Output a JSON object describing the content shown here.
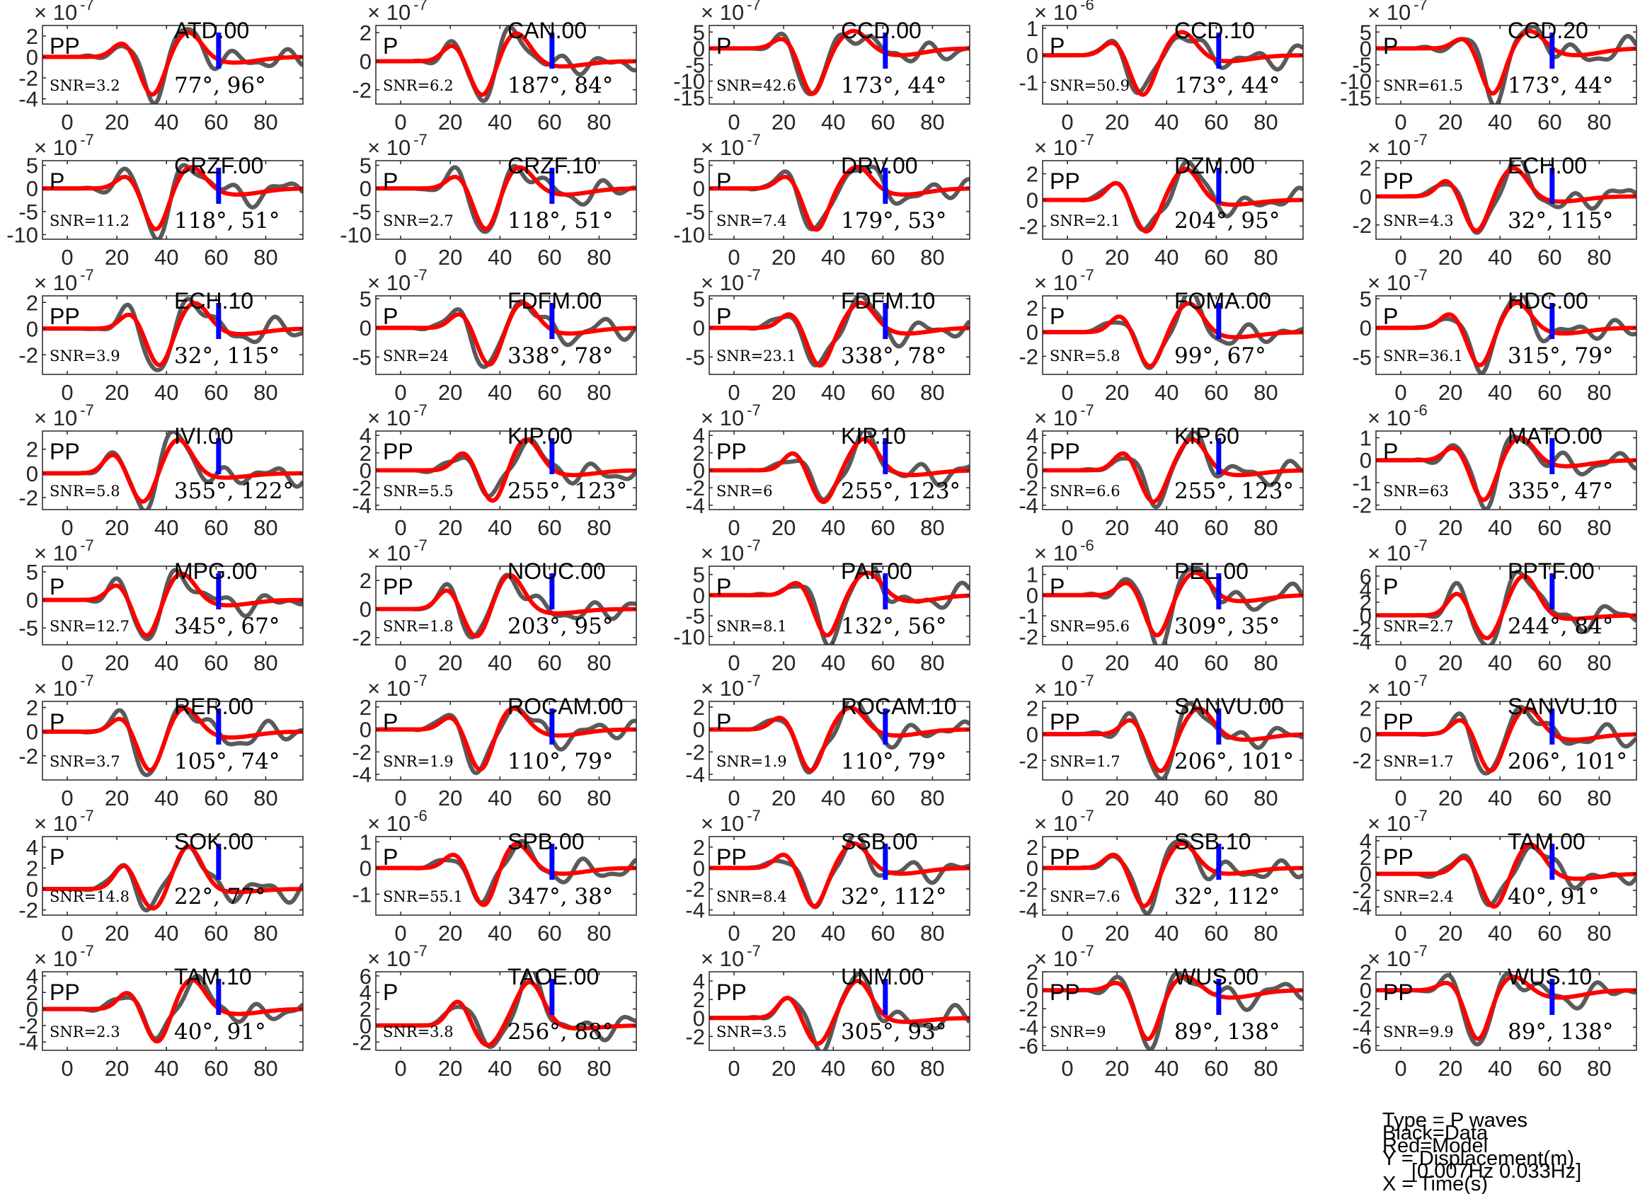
{
  "chart_data": {
    "type": "line",
    "layout": {
      "rows": 8,
      "cols": 5
    },
    "xlim": [
      -10,
      95
    ],
    "xticks": [
      0,
      20,
      40,
      60,
      80
    ],
    "series_colors": {
      "data": "#5a5a5a",
      "model": "#ff0000",
      "marker": "#0000ff"
    },
    "legend_text": [
      "Type = P waves",
      "Black=Data",
      "Red=Model",
      "Y = Displacement(m)",
      "[0.007Hz 0.033Hz]",
      "X = Time(s)"
    ],
    "panels": [
      {
        "station": "ATD.00",
        "phase": "PP",
        "snr": "SNR=3.2",
        "angles": "77°, 96°",
        "exp": "-7",
        "ylim": [
          -4.5,
          3
        ],
        "yticks": [
          -4,
          -2,
          0,
          2
        ],
        "marker_t": 61,
        "seed": 1
      },
      {
        "station": "CAN.00",
        "phase": "P",
        "snr": "SNR=6.2",
        "angles": "187°, 84°",
        "exp": "-7",
        "ylim": [
          -3,
          2.5
        ],
        "yticks": [
          -2,
          0,
          2
        ],
        "marker_t": 61,
        "seed": 2
      },
      {
        "station": "CCD.00",
        "phase": "P",
        "snr": "SNR=42.6",
        "angles": "173°, 44°",
        "exp": "-7",
        "ylim": [
          -17,
          7
        ],
        "yticks": [
          -15,
          -10,
          -5,
          0,
          5
        ],
        "marker_t": 61,
        "seed": 3
      },
      {
        "station": "CCD.10",
        "phase": "P",
        "snr": "SNR=50.9",
        "angles": "173°, 44°",
        "exp": "-6",
        "ylim": [
          -1.8,
          1.1
        ],
        "yticks": [
          -1,
          0,
          1
        ],
        "marker_t": 61,
        "seed": 4
      },
      {
        "station": "CCD.20",
        "phase": "P",
        "snr": "SNR=61.5",
        "angles": "173°, 44°",
        "exp": "-7",
        "ylim": [
          -17,
          7
        ],
        "yticks": [
          -15,
          -10,
          -5,
          0,
          5
        ],
        "marker_t": 61,
        "seed": 5
      },
      {
        "station": "CRZF.00",
        "phase": "P",
        "snr": "SNR=11.2",
        "angles": "118°, 51°",
        "exp": "-7",
        "ylim": [
          -11,
          6
        ],
        "yticks": [
          -10,
          -5,
          0,
          5
        ],
        "marker_t": 61,
        "seed": 6
      },
      {
        "station": "CRZF.10",
        "phase": "P",
        "snr": "SNR=2.7",
        "angles": "118°, 51°",
        "exp": "-7",
        "ylim": [
          -11,
          6
        ],
        "yticks": [
          -10,
          -5,
          0,
          5
        ],
        "marker_t": 61,
        "seed": 7
      },
      {
        "station": "DRV.00",
        "phase": "P",
        "snr": "SNR=7.4",
        "angles": "179°, 53°",
        "exp": "-7",
        "ylim": [
          -11,
          6
        ],
        "yticks": [
          -10,
          -5,
          0,
          5
        ],
        "marker_t": 61,
        "seed": 8
      },
      {
        "station": "DZM.00",
        "phase": "PP",
        "snr": "SNR=2.1",
        "angles": "204°, 95°",
        "exp": "-7",
        "ylim": [
          -3,
          3
        ],
        "yticks": [
          -2,
          0,
          2
        ],
        "marker_t": 61,
        "seed": 9
      },
      {
        "station": "ECH.00",
        "phase": "PP",
        "snr": "SNR=4.3",
        "angles": "32°, 115°",
        "exp": "-7",
        "ylim": [
          -3,
          2.5
        ],
        "yticks": [
          -2,
          0,
          2
        ],
        "marker_t": 61,
        "seed": 10
      },
      {
        "station": "ECH.10",
        "phase": "PP",
        "snr": "SNR=3.9",
        "angles": "32°, 115°",
        "exp": "-7",
        "ylim": [
          -3.5,
          2.5
        ],
        "yticks": [
          -2,
          0,
          2
        ],
        "marker_t": 61,
        "seed": 11
      },
      {
        "station": "FDFM.00",
        "phase": "P",
        "snr": "SNR=24",
        "angles": "338°, 78°",
        "exp": "-7",
        "ylim": [
          -8,
          5.5
        ],
        "yticks": [
          -5,
          0,
          5
        ],
        "marker_t": 61,
        "seed": 12
      },
      {
        "station": "FDFM.10",
        "phase": "P",
        "snr": "SNR=23.1",
        "angles": "338°, 78°",
        "exp": "-7",
        "ylim": [
          -8,
          5.5
        ],
        "yticks": [
          -5,
          0,
          5
        ],
        "marker_t": 61,
        "seed": 13
      },
      {
        "station": "FOMA.00",
        "phase": "P",
        "snr": "SNR=5.8",
        "angles": "99°, 67°",
        "exp": "-7",
        "ylim": [
          -3.5,
          3
        ],
        "yticks": [
          -2,
          0,
          2
        ],
        "marker_t": 61,
        "seed": 14
      },
      {
        "station": "HDC.00",
        "phase": "P",
        "snr": "SNR=36.1",
        "angles": "315°, 79°",
        "exp": "-7",
        "ylim": [
          -8,
          5.5
        ],
        "yticks": [
          -5,
          0,
          5
        ],
        "marker_t": 61,
        "seed": 15
      },
      {
        "station": "IVI.00",
        "phase": "PP",
        "snr": "SNR=5.8",
        "angles": "355°, 122°",
        "exp": "-7",
        "ylim": [
          -3,
          3.5
        ],
        "yticks": [
          -2,
          0,
          2
        ],
        "marker_t": 61,
        "seed": 16
      },
      {
        "station": "KIP.00",
        "phase": "PP",
        "snr": "SNR=5.5",
        "angles": "255°, 123°",
        "exp": "-7",
        "ylim": [
          -4.5,
          4.5
        ],
        "yticks": [
          -4,
          -2,
          0,
          2,
          4
        ],
        "marker_t": 61,
        "seed": 17
      },
      {
        "station": "KIP.10",
        "phase": "PP",
        "snr": "SNR=6",
        "angles": "255°, 123°",
        "exp": "-7",
        "ylim": [
          -4.5,
          4.5
        ],
        "yticks": [
          -4,
          -2,
          0,
          2,
          4
        ],
        "marker_t": 61,
        "seed": 18
      },
      {
        "station": "KIP.60",
        "phase": "PP",
        "snr": "SNR=6.6",
        "angles": "255°, 123°",
        "exp": "-7",
        "ylim": [
          -4.5,
          4.5
        ],
        "yticks": [
          -4,
          -2,
          0,
          2,
          4
        ],
        "marker_t": 61,
        "seed": 19
      },
      {
        "station": "MATO.00",
        "phase": "P",
        "snr": "SNR=63",
        "angles": "335°, 47°",
        "exp": "-6",
        "ylim": [
          -2.2,
          1.3
        ],
        "yticks": [
          -2,
          -1,
          0,
          1
        ],
        "marker_t": 61,
        "seed": 20
      },
      {
        "station": "MPG.00",
        "phase": "P",
        "snr": "SNR=12.7",
        "angles": "345°, 67°",
        "exp": "-7",
        "ylim": [
          -8,
          6
        ],
        "yticks": [
          -5,
          0,
          5
        ],
        "marker_t": 61,
        "seed": 21
      },
      {
        "station": "NOUC.00",
        "phase": "PP",
        "snr": "SNR=1.8",
        "angles": "203°, 95°",
        "exp": "-7",
        "ylim": [
          -2.5,
          3
        ],
        "yticks": [
          -2,
          0,
          2
        ],
        "marker_t": 61,
        "seed": 22
      },
      {
        "station": "PAF.00",
        "phase": "P",
        "snr": "SNR=8.1",
        "angles": "132°, 56°",
        "exp": "-7",
        "ylim": [
          -12,
          7
        ],
        "yticks": [
          -10,
          -5,
          0,
          5
        ],
        "marker_t": 61,
        "seed": 23
      },
      {
        "station": "PEL.00",
        "phase": "P",
        "snr": "SNR=95.6",
        "angles": "309°, 35°",
        "exp": "-6",
        "ylim": [
          -2.4,
          1.4
        ],
        "yticks": [
          -2,
          -1,
          0,
          1
        ],
        "marker_t": 61,
        "seed": 24
      },
      {
        "station": "PPTF.00",
        "phase": "P",
        "snr": "SNR=2.7",
        "angles": "244°, 84°",
        "exp": "-7",
        "ylim": [
          -4.5,
          7.5
        ],
        "yticks": [
          -4,
          -2,
          0,
          2,
          4,
          6
        ],
        "marker_t": 61,
        "seed": 25
      },
      {
        "station": "RER.00",
        "phase": "P",
        "snr": "SNR=3.7",
        "angles": "105°, 74°",
        "exp": "-7",
        "ylim": [
          -4,
          2.5
        ],
        "yticks": [
          -2,
          0,
          2
        ],
        "marker_t": 61,
        "seed": 26
      },
      {
        "station": "ROCAM.00",
        "phase": "P",
        "snr": "SNR=1.9",
        "angles": "110°, 79°",
        "exp": "-7",
        "ylim": [
          -4.5,
          2.5
        ],
        "yticks": [
          -4,
          -2,
          0,
          2
        ],
        "marker_t": 61,
        "seed": 27
      },
      {
        "station": "ROCAM.10",
        "phase": "P",
        "snr": "SNR=1.9",
        "angles": "110°, 79°",
        "exp": "-7",
        "ylim": [
          -4.5,
          2.5
        ],
        "yticks": [
          -4,
          -2,
          0,
          2
        ],
        "marker_t": 61,
        "seed": 28
      },
      {
        "station": "SANVU.00",
        "phase": "PP",
        "snr": "SNR=1.7",
        "angles": "206°, 101°",
        "exp": "-7",
        "ylim": [
          -3.5,
          2.5
        ],
        "yticks": [
          -2,
          0,
          2
        ],
        "marker_t": 61,
        "seed": 29
      },
      {
        "station": "SANVU.10",
        "phase": "PP",
        "snr": "SNR=1.7",
        "angles": "206°, 101°",
        "exp": "-7",
        "ylim": [
          -3.5,
          2.5
        ],
        "yticks": [
          -2,
          0,
          2
        ],
        "marker_t": 61,
        "seed": 30
      },
      {
        "station": "SOK.00",
        "phase": "P",
        "snr": "SNR=14.8",
        "angles": "22°, 77°",
        "exp": "-7",
        "ylim": [
          -2.5,
          5
        ],
        "yticks": [
          -2,
          0,
          2,
          4
        ],
        "marker_t": 61,
        "seed": 31
      },
      {
        "station": "SPB.00",
        "phase": "P",
        "snr": "SNR=55.1",
        "angles": "347°, 38°",
        "exp": "-6",
        "ylim": [
          -1.8,
          1.2
        ],
        "yticks": [
          -1,
          0,
          1
        ],
        "marker_t": 61,
        "seed": 32
      },
      {
        "station": "SSB.00",
        "phase": "PP",
        "snr": "SNR=8.4",
        "angles": "32°, 112°",
        "exp": "-7",
        "ylim": [
          -4.5,
          3
        ],
        "yticks": [
          -4,
          -2,
          0,
          2
        ],
        "marker_t": 61,
        "seed": 33
      },
      {
        "station": "SSB.10",
        "phase": "PP",
        "snr": "SNR=7.6",
        "angles": "32°, 112°",
        "exp": "-7",
        "ylim": [
          -4.5,
          3
        ],
        "yticks": [
          -4,
          -2,
          0,
          2
        ],
        "marker_t": 61,
        "seed": 34
      },
      {
        "station": "TAM.00",
        "phase": "PP",
        "snr": "SNR=2.4",
        "angles": "40°, 91°",
        "exp": "-7",
        "ylim": [
          -5,
          4.5
        ],
        "yticks": [
          -4,
          -2,
          0,
          2,
          4
        ],
        "marker_t": 61,
        "seed": 35
      },
      {
        "station": "TAM.10",
        "phase": "PP",
        "snr": "SNR=2.3",
        "angles": "40°, 91°",
        "exp": "-7",
        "ylim": [
          -5,
          4.5
        ],
        "yticks": [
          -4,
          -2,
          0,
          2,
          4
        ],
        "marker_t": 61,
        "seed": 36
      },
      {
        "station": "TAOE.00",
        "phase": "P",
        "snr": "SNR=3.8",
        "angles": "256°, 88°",
        "exp": "-7",
        "ylim": [
          -3,
          6.5
        ],
        "yticks": [
          -2,
          0,
          2,
          4,
          6
        ],
        "marker_t": 61,
        "seed": 37
      },
      {
        "station": "UNM.00",
        "phase": "PP",
        "snr": "SNR=3.5",
        "angles": "305°, 93°",
        "exp": "-7",
        "ylim": [
          -3.5,
          5
        ],
        "yticks": [
          -2,
          0,
          2,
          4
        ],
        "marker_t": 61,
        "seed": 38
      },
      {
        "station": "WUS.00",
        "phase": "PP",
        "snr": "SNR=9",
        "angles": "89°, 138°",
        "exp": "-7",
        "ylim": [
          -6.5,
          2
        ],
        "yticks": [
          -6,
          -4,
          -2,
          0,
          2
        ],
        "marker_t": 61,
        "seed": 39
      },
      {
        "station": "WUS.10",
        "phase": "PP",
        "snr": "SNR=9.9",
        "angles": "89°, 138°",
        "exp": "-7",
        "ylim": [
          -6.5,
          2
        ],
        "yticks": [
          -6,
          -4,
          -2,
          0,
          2
        ],
        "marker_t": 61,
        "seed": 40
      }
    ]
  }
}
